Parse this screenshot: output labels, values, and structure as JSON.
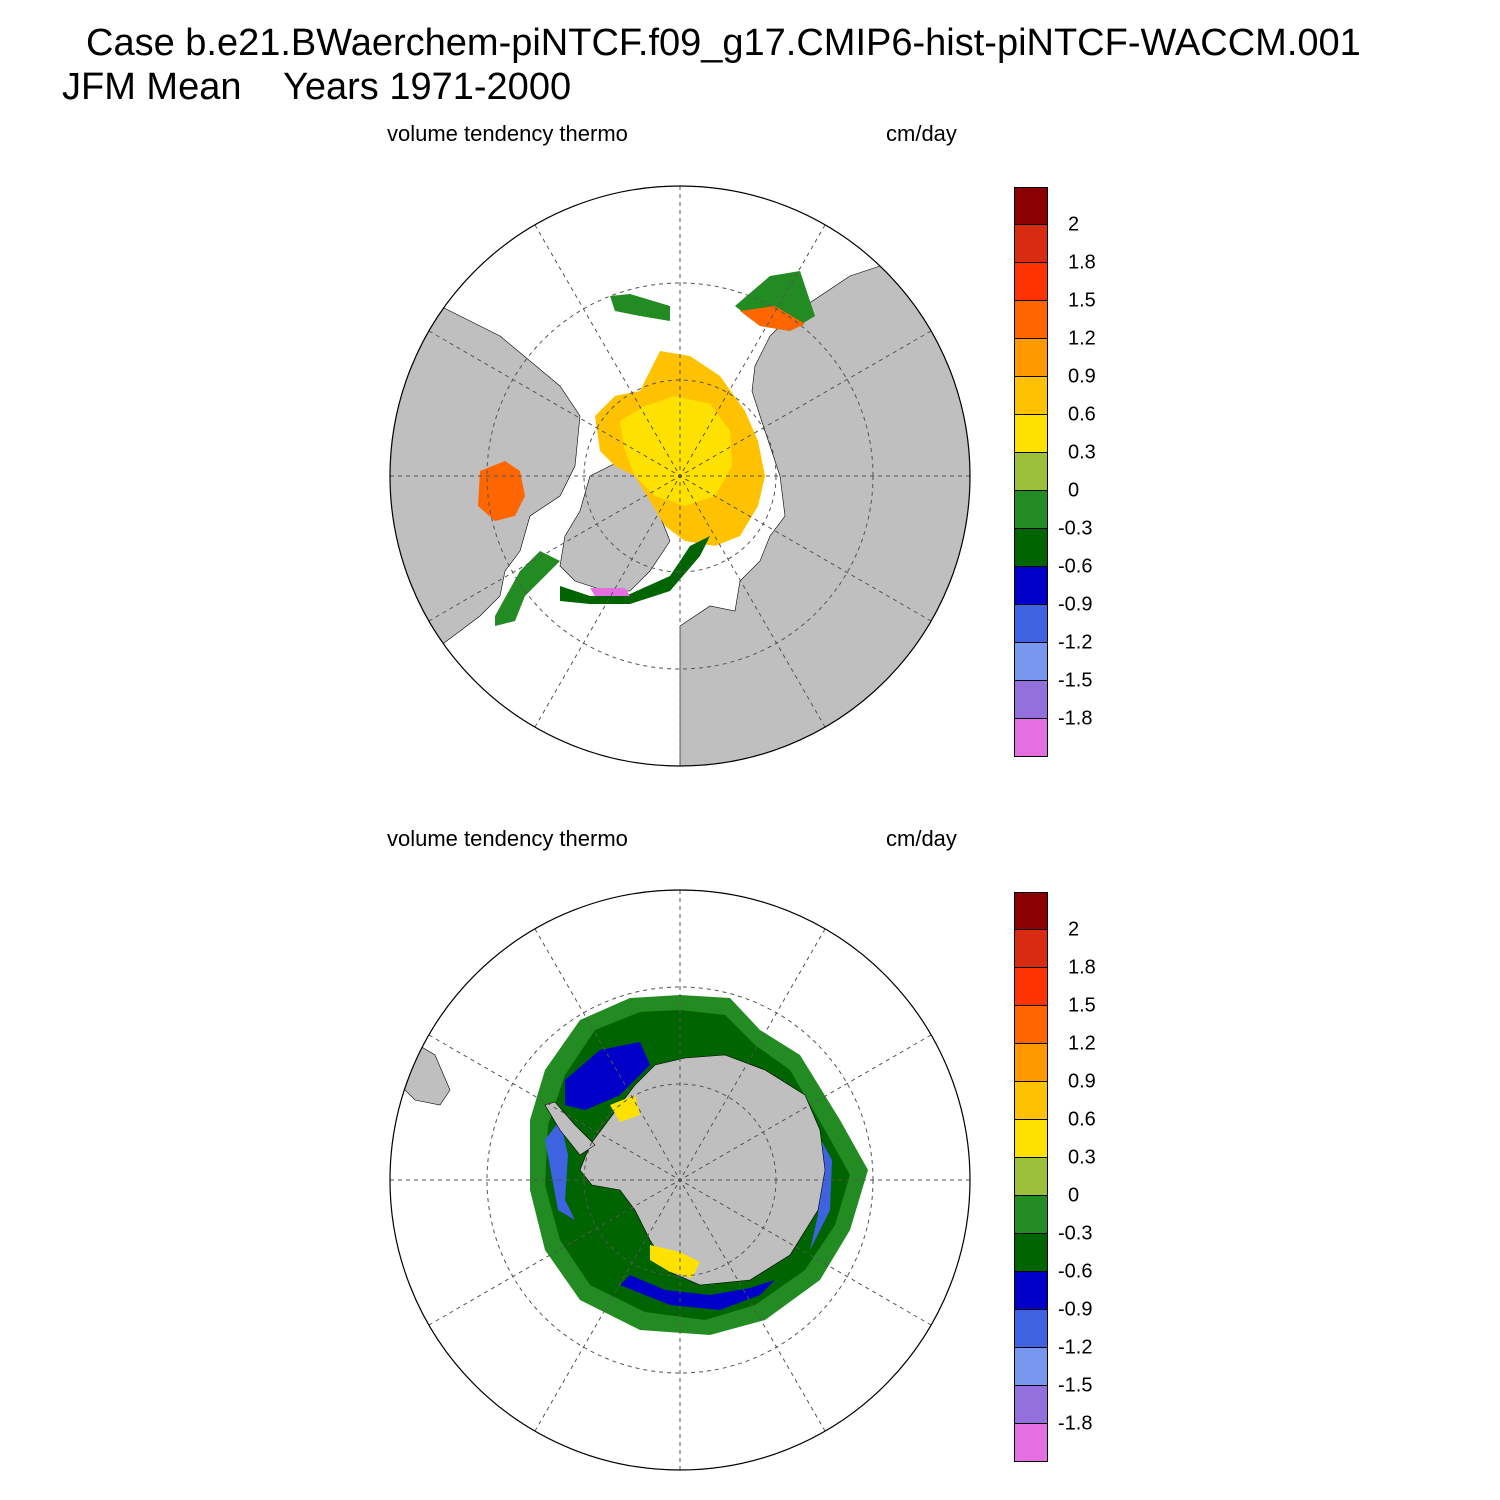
{
  "header": {
    "case_line": "Case b.e21.BWaerchem-piNTCF.f09_g17.CMIP6-hist-piNTCF-WACCM.001",
    "period_line": "JFM Mean    Years 1971-2000"
  },
  "panels": [
    {
      "variable": "volume tendency thermo",
      "units": "cm/day",
      "hemisphere": "north"
    },
    {
      "variable": "volume tendency thermo",
      "units": "cm/day",
      "hemisphere": "south"
    }
  ],
  "colorbar": {
    "labels": [
      "2",
      "1.8",
      "1.5",
      "1.2",
      "0.9",
      "0.6",
      "0.3",
      "0",
      "-0.3",
      "-0.6",
      "-0.9",
      "-1.2",
      "-1.5",
      "-1.8"
    ],
    "colors": [
      "#8b0000",
      "#d82c12",
      "#ff3300",
      "#ff6600",
      "#ff9900",
      "#ffc200",
      "#ffe100",
      "#9bc13a",
      "#228b22",
      "#006400",
      "#0000c8",
      "#3d63e0",
      "#7898f0",
      "#9370db",
      "#e36fe0"
    ]
  },
  "map_colors": {
    "land": "#bfbfbf",
    "ocean": "#ffffff",
    "grid": "#555555"
  }
}
